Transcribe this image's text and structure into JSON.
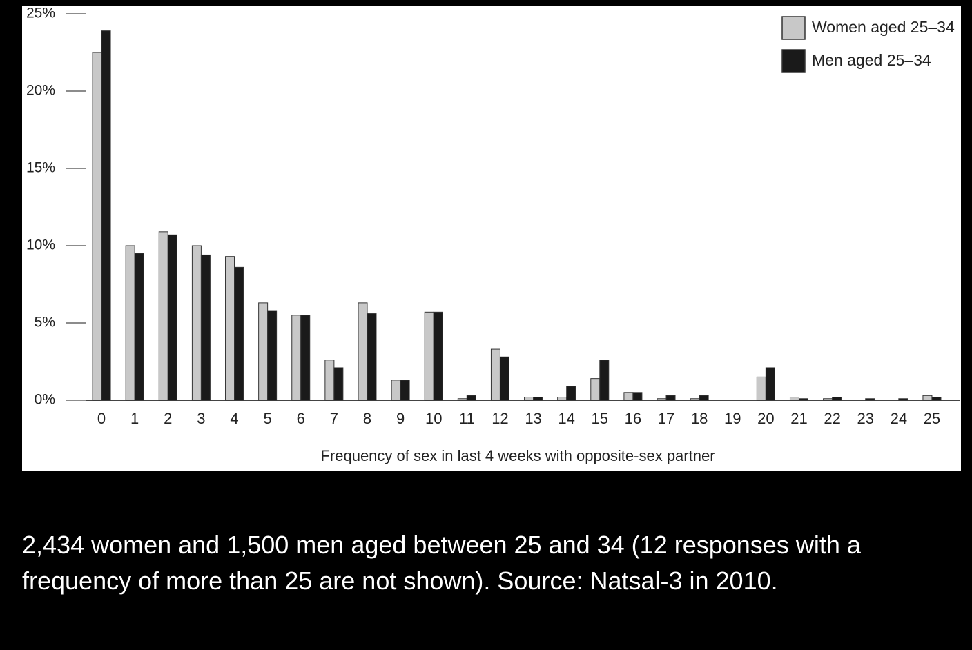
{
  "chart_data": {
    "type": "bar",
    "x_label": "Frequency of sex in last 4 weeks with opposite-sex partner",
    "categories": [
      "0",
      "1",
      "2",
      "3",
      "4",
      "5",
      "6",
      "7",
      "8",
      "9",
      "10",
      "11",
      "12",
      "13",
      "14",
      "15",
      "16",
      "17",
      "18",
      "19",
      "20",
      "21",
      "22",
      "23",
      "24",
      "25"
    ],
    "series": [
      {
        "name": "Women aged 25–34",
        "color": "#c8c8c8",
        "values": [
          22.5,
          10.0,
          10.9,
          10.0,
          9.3,
          6.3,
          5.5,
          2.6,
          6.3,
          1.3,
          5.7,
          0.1,
          3.3,
          0.2,
          0.2,
          1.4,
          0.5,
          0.1,
          0.1,
          0,
          1.5,
          0.2,
          0.1,
          0,
          0,
          0.3
        ]
      },
      {
        "name": "Men aged 25–34",
        "color": "#1a1a1a",
        "values": [
          23.9,
          9.5,
          10.7,
          9.4,
          8.6,
          5.8,
          5.5,
          2.1,
          5.6,
          1.3,
          5.7,
          0.3,
          2.8,
          0.2,
          0.9,
          2.6,
          0.5,
          0.3,
          0.3,
          0,
          2.1,
          0.1,
          0.2,
          0.1,
          0.1,
          0.2
        ]
      }
    ],
    "ylim": [
      0,
      25
    ],
    "yticks": [
      {
        "value": 0,
        "label": "0%"
      },
      {
        "value": 5,
        "label": "5%"
      },
      {
        "value": 10,
        "label": "10%"
      },
      {
        "value": 15,
        "label": "15%"
      },
      {
        "value": 20,
        "label": "20%"
      },
      {
        "value": 25,
        "label": "25%"
      }
    ],
    "grid": false,
    "legend": "upper right"
  },
  "caption": "2,434 women and 1,500 men aged between 25 and 34 (12 responses with a frequency of more than 25 are not shown). Source: Natsal-3 in 2010."
}
